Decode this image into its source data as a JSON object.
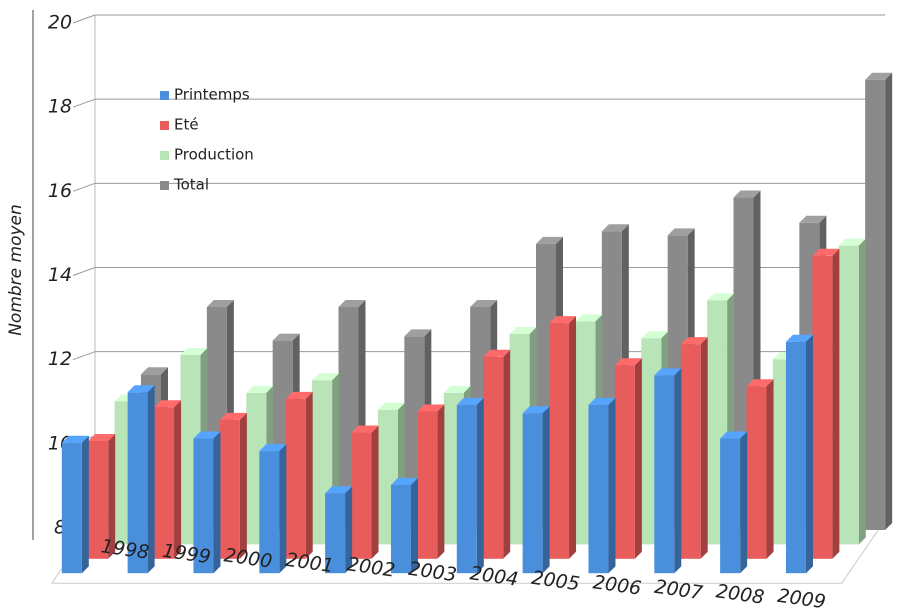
{
  "chart_data": {
    "type": "bar3d",
    "y_label": "Nombre moyen",
    "categories": [
      "1998",
      "1999",
      "2000",
      "2001",
      "2002",
      "2003",
      "2004",
      "2005",
      "2006",
      "2007",
      "2008",
      "2009"
    ],
    "series": [
      {
        "name": "Printemps",
        "color": "#4a8fdc",
        "values": [
          11.1,
          12.3,
          11.2,
          10.9,
          9.9,
          10.1,
          12.0,
          11.8,
          12.0,
          12.7,
          11.2,
          13.5
        ]
      },
      {
        "name": "Eté",
        "color": "#e85c5c",
        "values": [
          10.8,
          11.6,
          11.3,
          11.8,
          11.0,
          11.5,
          12.8,
          13.6,
          12.6,
          13.1,
          12.1,
          15.2
        ]
      },
      {
        "name": "Production",
        "color": "#b8e4b8",
        "values": [
          11.4,
          12.5,
          11.6,
          11.9,
          11.2,
          11.6,
          13.0,
          13.3,
          12.9,
          13.8,
          12.4,
          15.1
        ]
      },
      {
        "name": "Total",
        "color": "#8a8a8a",
        "values": [
          11.7,
          13.3,
          12.5,
          13.3,
          12.6,
          13.3,
          14.8,
          15.1,
          15.0,
          15.9,
          15.3,
          18.7
        ]
      }
    ],
    "ylim": [
      8,
      20
    ],
    "yticks": [
      8,
      10,
      12,
      14,
      16,
      18,
      20
    ],
    "grid": true
  }
}
